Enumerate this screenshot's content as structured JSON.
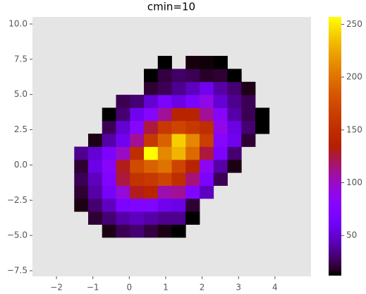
{
  "chart_data": {
    "type": "hist2d",
    "title": "cmin=10",
    "colormap": "gnuplot",
    "grid": false,
    "x_edges": [
      -2.66,
      -2.2775,
      -1.895,
      -1.5125,
      -1.13,
      -0.7475,
      -0.365,
      0.0175,
      0.4,
      0.7825,
      1.165,
      1.5475,
      1.93,
      2.3125,
      2.695,
      3.0775,
      3.46,
      3.8425,
      4.225,
      4.6075,
      4.99
    ],
    "y_edges": [
      -7.9,
      -6.98,
      -6.06,
      -5.14,
      -4.22,
      -3.3,
      -2.38,
      -1.46,
      -0.54,
      0.38,
      1.3,
      2.22,
      3.14,
      4.06,
      4.98,
      5.9,
      6.82,
      7.74,
      8.66,
      9.58,
      10.5
    ],
    "counts": [
      [
        null,
        null,
        null,
        null,
        null,
        null,
        null,
        null,
        null,
        null,
        null,
        null,
        null,
        null,
        null,
        null,
        null,
        null,
        null,
        null
      ],
      [
        null,
        null,
        null,
        null,
        null,
        null,
        null,
        null,
        null,
        null,
        null,
        null,
        null,
        null,
        null,
        null,
        null,
        null,
        null,
        null
      ],
      [
        null,
        null,
        null,
        null,
        null,
        null,
        null,
        null,
        null,
        null,
        null,
        null,
        null,
        null,
        null,
        null,
        null,
        null,
        null,
        null
      ],
      [
        null,
        null,
        null,
        null,
        null,
        15,
        25,
        30,
        22,
        15,
        12,
        null,
        null,
        null,
        null,
        null,
        null,
        null,
        null,
        null
      ],
      [
        null,
        null,
        null,
        null,
        20,
        30,
        40,
        45,
        40,
        35,
        35,
        12,
        null,
        null,
        null,
        null,
        null,
        null,
        null,
        null
      ],
      [
        null,
        null,
        null,
        15,
        30,
        45,
        70,
        75,
        75,
        60,
        55,
        20,
        null,
        null,
        null,
        null,
        null,
        null,
        null,
        null
      ],
      [
        null,
        null,
        null,
        20,
        40,
        65,
        95,
        130,
        140,
        105,
        110,
        75,
        45,
        null,
        null,
        null,
        null,
        null,
        null,
        null
      ],
      [
        null,
        null,
        null,
        25,
        45,
        75,
        125,
        155,
        160,
        170,
        150,
        115,
        70,
        25,
        null,
        null,
        null,
        null,
        null,
        null
      ],
      [
        null,
        null,
        null,
        20,
        55,
        80,
        130,
        175,
        190,
        200,
        170,
        140,
        85,
        40,
        15,
        null,
        null,
        null,
        null,
        null
      ],
      [
        null,
        null,
        null,
        35,
        50,
        70,
        100,
        150,
        257,
        210,
        230,
        195,
        125,
        70,
        30,
        null,
        null,
        null,
        null,
        null
      ],
      [
        null,
        null,
        null,
        null,
        15,
        40,
        60,
        110,
        160,
        190,
        240,
        210,
        165,
        80,
        60,
        20,
        null,
        null,
        null,
        null
      ],
      [
        null,
        null,
        null,
        null,
        null,
        25,
        50,
        80,
        125,
        160,
        170,
        160,
        150,
        90,
        55,
        30,
        12,
        null,
        null,
        null
      ],
      [
        null,
        null,
        null,
        null,
        null,
        12,
        30,
        60,
        80,
        110,
        140,
        140,
        110,
        80,
        40,
        25,
        12,
        null,
        null,
        null
      ],
      [
        null,
        null,
        null,
        null,
        null,
        null,
        25,
        30,
        50,
        70,
        55,
        70,
        90,
        50,
        35,
        25,
        null,
        null,
        null,
        null
      ],
      [
        null,
        null,
        null,
        null,
        null,
        null,
        null,
        null,
        20,
        25,
        35,
        45,
        60,
        40,
        30,
        15,
        null,
        null,
        null,
        null
      ],
      [
        null,
        null,
        null,
        null,
        null,
        null,
        null,
        null,
        12,
        22,
        28,
        25,
        18,
        20,
        12,
        null,
        null,
        null,
        null,
        null
      ],
      [
        null,
        null,
        null,
        null,
        null,
        null,
        null,
        null,
        null,
        12,
        null,
        14,
        13,
        12,
        null,
        null,
        null,
        null,
        null,
        null
      ],
      [
        null,
        null,
        null,
        null,
        null,
        null,
        null,
        null,
        null,
        null,
        null,
        null,
        null,
        null,
        null,
        null,
        null,
        null,
        null,
        null
      ],
      [
        null,
        null,
        null,
        null,
        null,
        null,
        null,
        null,
        null,
        null,
        null,
        null,
        null,
        null,
        null,
        null,
        null,
        null,
        null,
        null
      ],
      [
        null,
        null,
        null,
        null,
        null,
        null,
        null,
        null,
        null,
        null,
        null,
        null,
        null,
        null,
        null,
        null,
        null,
        null,
        null,
        null
      ]
    ],
    "xlim": [
      -2.66,
      4.99
    ],
    "ylim": [
      -7.9,
      10.5
    ],
    "xticks": [
      {
        "value": -2,
        "label": "−2"
      },
      {
        "value": -1,
        "label": "−1"
      },
      0,
      1,
      2,
      3,
      4
    ],
    "yticks": [
      {
        "value": -7.5,
        "label": "−7.5"
      },
      {
        "value": -5,
        "label": "−5.0"
      },
      {
        "value": -2.5,
        "label": "−2.5"
      },
      {
        "value": 0,
        "label": "0.0"
      },
      {
        "value": 2.5,
        "label": "2.5"
      },
      {
        "value": 5,
        "label": "5.0"
      },
      {
        "value": 7.5,
        "label": "7.5"
      },
      {
        "value": 10,
        "label": "10.0"
      }
    ],
    "clim": [
      12,
      257
    ],
    "cticks": [
      50,
      100,
      150,
      200,
      250
    ]
  }
}
